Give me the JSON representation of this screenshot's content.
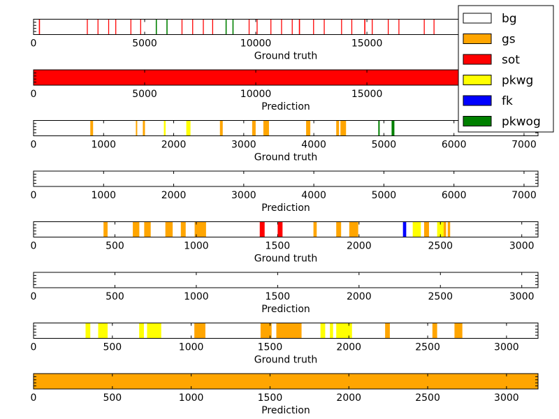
{
  "chart_data": {
    "type": "segmentation-strips",
    "colors": {
      "bg": "#ffffff",
      "gs": "#ffa500",
      "sot": "#ff0000",
      "pkwg": "#ffff00",
      "fk": "#0000ff",
      "pkwog": "#008000"
    },
    "legend": {
      "placement": "top-right",
      "entries": [
        "bg",
        "gs",
        "sot",
        "pkwg",
        "fk",
        "pkwog"
      ]
    },
    "panels": [
      {
        "xlabel": "Ground truth",
        "xlim": [
          0,
          22700
        ],
        "xticks": [
          0,
          5000,
          10000,
          15000
        ],
        "thin_segments": true,
        "segments": [
          {
            "label": "sot",
            "start": 240,
            "end": 290
          },
          {
            "label": "sot",
            "start": 2400,
            "end": 2440
          },
          {
            "label": "sot",
            "start": 2880,
            "end": 2920
          },
          {
            "label": "sot",
            "start": 3360,
            "end": 3400
          },
          {
            "label": "sot",
            "start": 3680,
            "end": 3720
          },
          {
            "label": "sot",
            "start": 4360,
            "end": 4400
          },
          {
            "label": "sot",
            "start": 4800,
            "end": 4840
          },
          {
            "label": "pkwog",
            "start": 5500,
            "end": 5550
          },
          {
            "label": "pkwog",
            "start": 5980,
            "end": 6030
          },
          {
            "label": "sot",
            "start": 6660,
            "end": 6700
          },
          {
            "label": "sot",
            "start": 7140,
            "end": 7180
          },
          {
            "label": "sot",
            "start": 7620,
            "end": 7660
          },
          {
            "label": "sot",
            "start": 8040,
            "end": 8080
          },
          {
            "label": "pkwog",
            "start": 8640,
            "end": 8690
          },
          {
            "label": "pkwog",
            "start": 8950,
            "end": 9000
          },
          {
            "label": "sot",
            "start": 9680,
            "end": 9720
          },
          {
            "label": "sot",
            "start": 10040,
            "end": 10080
          },
          {
            "label": "sot",
            "start": 10660,
            "end": 10700
          },
          {
            "label": "sot",
            "start": 11140,
            "end": 11180
          },
          {
            "label": "sot",
            "start": 11620,
            "end": 11660
          },
          {
            "label": "sot",
            "start": 11940,
            "end": 11990
          },
          {
            "label": "sot",
            "start": 12580,
            "end": 12620
          },
          {
            "label": "sot",
            "start": 13060,
            "end": 13100
          },
          {
            "label": "sot",
            "start": 13840,
            "end": 13880
          },
          {
            "label": "sot",
            "start": 14300,
            "end": 14340
          },
          {
            "label": "sot",
            "start": 14880,
            "end": 14930
          },
          {
            "label": "sot",
            "start": 15220,
            "end": 15260
          },
          {
            "label": "sot",
            "start": 15940,
            "end": 15980
          },
          {
            "label": "sot",
            "start": 16420,
            "end": 16460
          },
          {
            "label": "sot",
            "start": 17560,
            "end": 17600
          },
          {
            "label": "sot",
            "start": 18000,
            "end": 18040
          }
        ]
      },
      {
        "xlabel": "Prediction",
        "xlim": [
          0,
          22700
        ],
        "xticks": [
          0,
          5000,
          10000,
          15000
        ],
        "segments": [
          {
            "label": "sot",
            "start": 0,
            "end": 22700
          }
        ]
      },
      {
        "xlabel": "Ground truth",
        "xlim": [
          0,
          7200
        ],
        "xticks": [
          0,
          1000,
          2000,
          3000,
          4000,
          5000,
          6000,
          7000
        ],
        "segments": [
          {
            "label": "gs",
            "start": 810,
            "end": 850
          },
          {
            "label": "gs",
            "start": 1460,
            "end": 1480
          },
          {
            "label": "gs",
            "start": 1560,
            "end": 1590
          },
          {
            "label": "pkwg",
            "start": 1860,
            "end": 1885
          },
          {
            "label": "pkwg",
            "start": 2180,
            "end": 2240
          },
          {
            "label": "gs",
            "start": 2660,
            "end": 2700
          },
          {
            "label": "gs",
            "start": 3120,
            "end": 3170
          },
          {
            "label": "gs",
            "start": 3280,
            "end": 3360
          },
          {
            "label": "gs",
            "start": 3890,
            "end": 3950
          },
          {
            "label": "gs",
            "start": 4320,
            "end": 4360
          },
          {
            "label": "gs",
            "start": 4380,
            "end": 4460
          },
          {
            "label": "pkwog",
            "start": 4920,
            "end": 4940
          },
          {
            "label": "pkwog",
            "start": 5110,
            "end": 5150
          }
        ]
      },
      {
        "xlabel": "Prediction",
        "xlim": [
          0,
          7200
        ],
        "xticks": [
          0,
          1000,
          2000,
          3000,
          4000,
          5000,
          6000,
          7000
        ],
        "segments": []
      },
      {
        "xlabel": "Ground truth",
        "xlim": [
          0,
          3100
        ],
        "xticks": [
          0,
          500,
          1000,
          1500,
          2000,
          2500,
          3000
        ],
        "segments": [
          {
            "label": "gs",
            "start": 430,
            "end": 455
          },
          {
            "label": "gs",
            "start": 610,
            "end": 650
          },
          {
            "label": "gs",
            "start": 680,
            "end": 720
          },
          {
            "label": "gs",
            "start": 810,
            "end": 855
          },
          {
            "label": "gs",
            "start": 905,
            "end": 935
          },
          {
            "label": "gs",
            "start": 990,
            "end": 1060
          },
          {
            "label": "sot",
            "start": 1390,
            "end": 1420
          },
          {
            "label": "sot",
            "start": 1500,
            "end": 1530
          },
          {
            "label": "gs",
            "start": 1720,
            "end": 1740
          },
          {
            "label": "gs",
            "start": 1860,
            "end": 1890
          },
          {
            "label": "gs",
            "start": 1940,
            "end": 1995
          },
          {
            "label": "fk",
            "start": 2270,
            "end": 2290
          },
          {
            "label": "pkwg",
            "start": 2330,
            "end": 2380
          },
          {
            "label": "gs",
            "start": 2400,
            "end": 2430
          },
          {
            "label": "pkwg",
            "start": 2480,
            "end": 2520
          },
          {
            "label": "gs",
            "start": 2520,
            "end": 2535
          },
          {
            "label": "gs",
            "start": 2545,
            "end": 2560
          }
        ]
      },
      {
        "xlabel": "Prediction",
        "xlim": [
          0,
          3100
        ],
        "xticks": [
          0,
          500,
          1000,
          1500,
          2000,
          2500,
          3000
        ],
        "segments": []
      },
      {
        "xlabel": "Ground truth",
        "xlim": [
          0,
          3200
        ],
        "xticks": [
          0,
          500,
          1000,
          1500,
          2000,
          2500,
          3000
        ],
        "segments": [
          {
            "label": "pkwg",
            "start": 330,
            "end": 360
          },
          {
            "label": "pkwg",
            "start": 410,
            "end": 470
          },
          {
            "label": "pkwg",
            "start": 670,
            "end": 700
          },
          {
            "label": "pkwg",
            "start": 720,
            "end": 810
          },
          {
            "label": "gs",
            "start": 1020,
            "end": 1090
          },
          {
            "label": "gs",
            "start": 1440,
            "end": 1510
          },
          {
            "label": "gs",
            "start": 1540,
            "end": 1700
          },
          {
            "label": "pkwg",
            "start": 1820,
            "end": 1850
          },
          {
            "label": "pkwg",
            "start": 1880,
            "end": 1900
          },
          {
            "label": "pkwg",
            "start": 1920,
            "end": 2020
          },
          {
            "label": "gs",
            "start": 2230,
            "end": 2260
          },
          {
            "label": "gs",
            "start": 2530,
            "end": 2560
          },
          {
            "label": "gs",
            "start": 2670,
            "end": 2720
          }
        ]
      },
      {
        "xlabel": "Prediction",
        "xlim": [
          0,
          3200
        ],
        "xticks": [
          0,
          500,
          1000,
          1500,
          2000,
          2500,
          3000
        ],
        "segments": [
          {
            "label": "gs",
            "start": 0,
            "end": 3200
          }
        ]
      }
    ]
  }
}
